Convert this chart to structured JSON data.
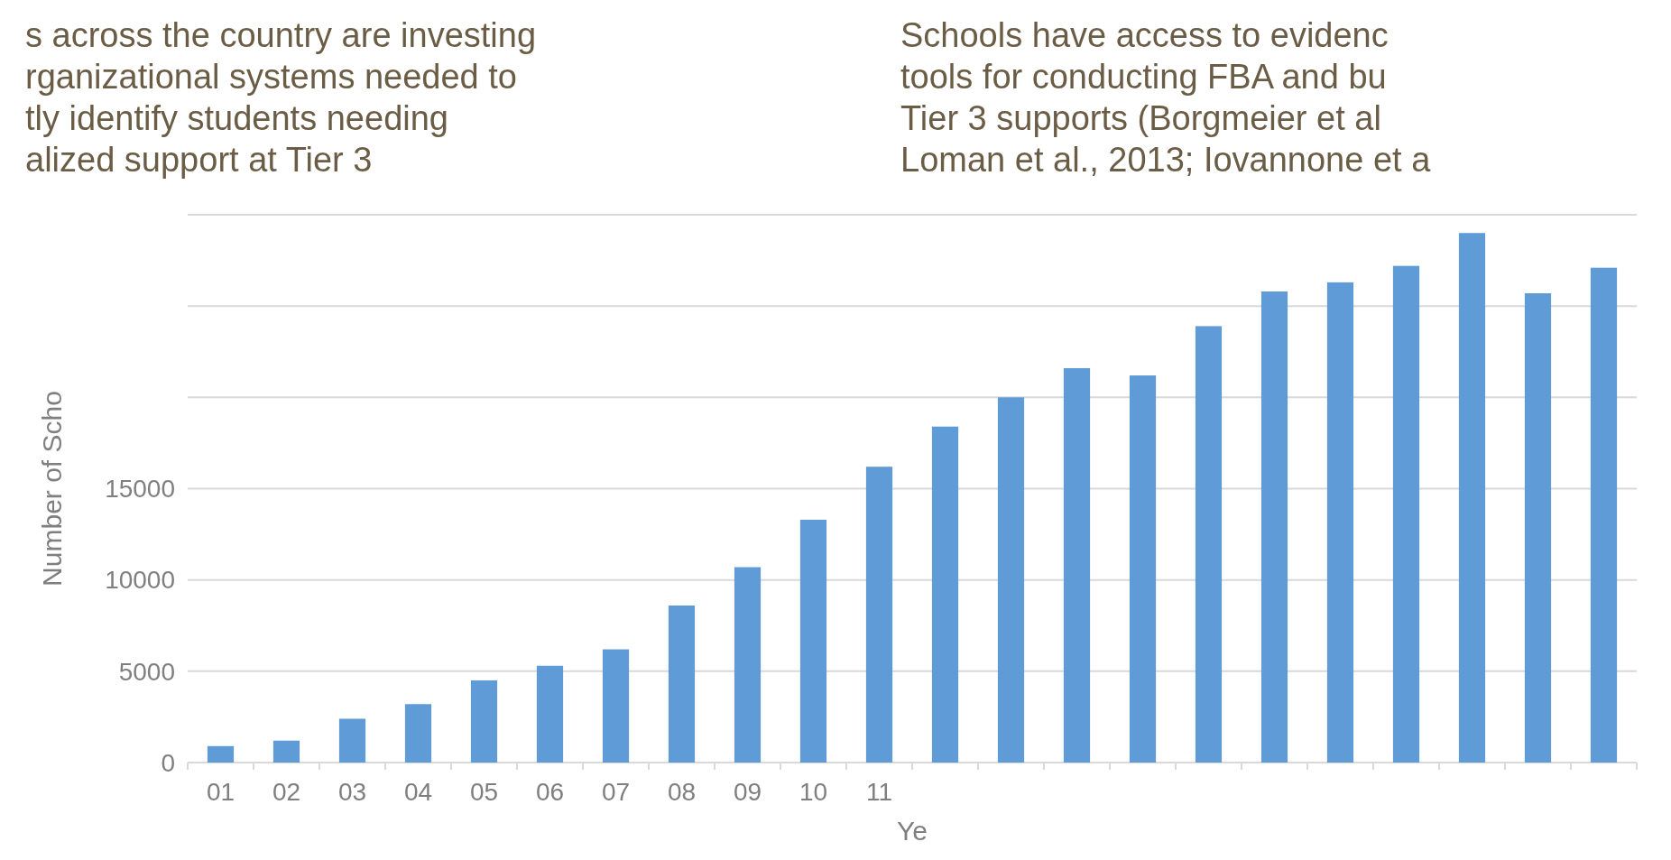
{
  "chart_data": {
    "type": "bar",
    "title": "s across the country are investing\nrganizational systems needed to\ntly identify students needing\nalized support at Tier 3",
    "annotations": [
      "Schools have access to evidenc\ntools for conducting FBA and bu\nTier 3 supports  (Borgmeier et al\nLoman et al., 2013; Iovannone et a"
    ],
    "ylabel": "Number of Scho",
    "xlabel": "Ye",
    "categories": [
      "01",
      "02",
      "03",
      "04",
      "05",
      "06",
      "07",
      "08",
      "09",
      "10",
      "11",
      null,
      null,
      null,
      null,
      null,
      null,
      null,
      null,
      null,
      null,
      null
    ],
    "values": [
      900,
      1200,
      2400,
      3200,
      4500,
      5300,
      6200,
      8600,
      10700,
      13300,
      16200,
      18400,
      20000,
      21600,
      21200,
      23900,
      25800,
      26300,
      27200,
      29000,
      25700,
      27100
    ],
    "color": "#5f9bd6",
    "ylim": [
      0,
      30000
    ],
    "yticks": [
      0,
      5000,
      10000,
      15000,
      {
        "value": 20000,
        "label": null
      },
      {
        "value": 25000,
        "label": null
      },
      {
        "value": 30000,
        "label": null
      }
    ],
    "grid": true
  }
}
